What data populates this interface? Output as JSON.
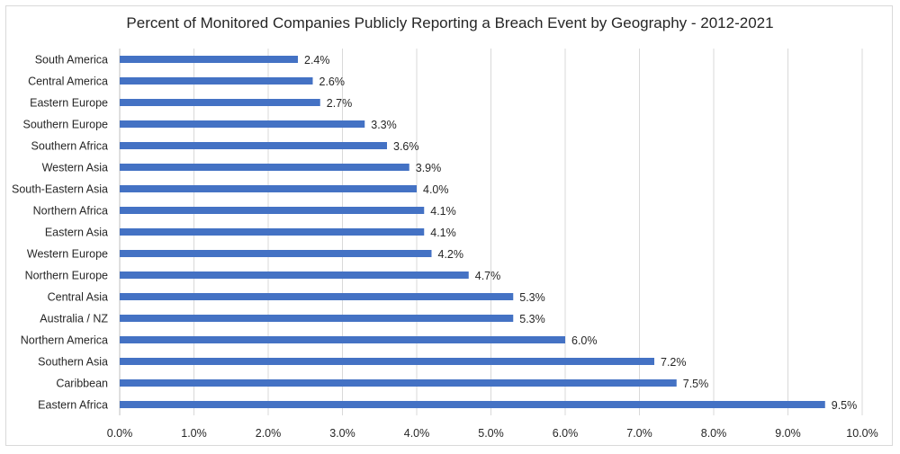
{
  "chart_data": {
    "type": "bar",
    "orientation": "horizontal",
    "title": "Percent of Monitored Companies Publicly Reporting a Breach Event by Geography - 2012-2021",
    "categories": [
      "South America",
      "Central America",
      "Eastern Europe",
      "Southern Europe",
      "Southern Africa",
      "Western Asia",
      "South-Eastern Asia",
      "Northern Africa",
      "Eastern Asia",
      "Western Europe",
      "Northern Europe",
      "Central Asia",
      "Australia / NZ",
      "Northern America",
      "Southern Asia",
      "Caribbean",
      "Eastern Africa"
    ],
    "values": [
      2.4,
      2.6,
      2.7,
      3.3,
      3.6,
      3.9,
      4.0,
      4.1,
      4.1,
      4.2,
      4.7,
      5.3,
      5.3,
      6.0,
      7.2,
      7.5,
      9.5
    ],
    "value_labels": [
      "2.4%",
      "2.6%",
      "2.7%",
      "3.3%",
      "3.6%",
      "3.9%",
      "4.0%",
      "4.1%",
      "4.1%",
      "4.2%",
      "4.7%",
      "5.3%",
      "5.3%",
      "6.0%",
      "7.2%",
      "7.5%",
      "9.5%"
    ],
    "xlim": [
      0,
      10
    ],
    "xticks": [
      "0.0%",
      "1.0%",
      "2.0%",
      "3.0%",
      "4.0%",
      "5.0%",
      "6.0%",
      "7.0%",
      "8.0%",
      "9.0%",
      "10.0%"
    ],
    "xlabel": "",
    "ylabel": "",
    "grid": "vertical",
    "legend": "none",
    "bar_color": "#4472c4",
    "grid_color": "#d9d9d9"
  }
}
